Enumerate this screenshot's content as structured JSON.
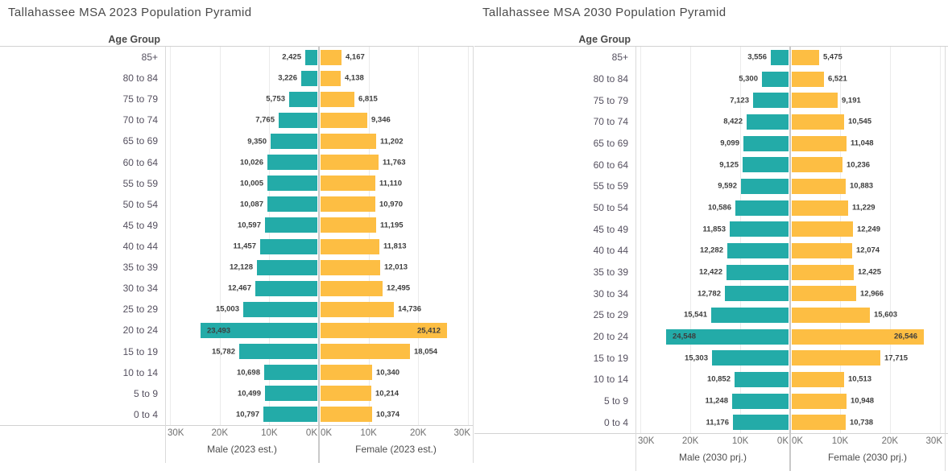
{
  "page": {
    "background": "#ffffff"
  },
  "colors": {
    "male_bar": "#23aba8",
    "female_bar": "#fdbe43",
    "title_text": "#4a4a4a",
    "age_label_text": "#55505f",
    "value_label_text": "#3d3d3d",
    "tick_text": "#6f6f6f",
    "axis_title_text": "#4e4e4e",
    "gridline": "#ebebeb",
    "center_axis_line": "#c9c9c9"
  },
  "chart_data": [
    {
      "type": "bar",
      "subtype": "population_pyramid",
      "title": "Tallahassee MSA 2023 Population Pyramid",
      "ylabel": "Age Group",
      "categories": [
        "85+",
        "80 to 84",
        "75 to 79",
        "70 to 74",
        "65 to 69",
        "60 to 64",
        "55 to 59",
        "50 to 54",
        "45 to 49",
        "40 to 44",
        "35 to 39",
        "30 to 34",
        "25 to 29",
        "20 to 24",
        "15 to 19",
        "10 to 14",
        "5 to 9",
        "0 to 4"
      ],
      "series": [
        {
          "name": "Male (2023 est.)",
          "side": "left",
          "color": "#23aba8",
          "values": [
            2425,
            3226,
            5753,
            7765,
            9350,
            10026,
            10005,
            10087,
            10597,
            11457,
            12128,
            12467,
            15003,
            23493,
            15782,
            10698,
            10499,
            10797
          ]
        },
        {
          "name": "Female (2023 est.)",
          "side": "right",
          "color": "#fdbe43",
          "values": [
            4167,
            4138,
            6815,
            9346,
            11202,
            11763,
            11110,
            10970,
            11195,
            11813,
            12013,
            12495,
            14736,
            25412,
            18054,
            10340,
            10214,
            10374
          ]
        }
      ],
      "xlim": [
        0,
        31000
      ],
      "tick_values": [
        30000,
        20000,
        10000,
        0
      ],
      "tick_labels": [
        "30K",
        "20K",
        "10K",
        "0K"
      ],
      "grid": true,
      "legend": "none"
    },
    {
      "type": "bar",
      "subtype": "population_pyramid",
      "title": "Tallahassee MSA 2030 Population Pyramid",
      "ylabel": "Age Group",
      "categories": [
        "85+",
        "80 to 84",
        "75 to 79",
        "70 to 74",
        "65 to 69",
        "60 to 64",
        "55 to 59",
        "50 to 54",
        "45 to 49",
        "40 to 44",
        "35 to 39",
        "30 to 34",
        "25 to 29",
        "20 to 24",
        "15 to 19",
        "10 to 14",
        "5 to 9",
        "0 to 4"
      ],
      "series": [
        {
          "name": "Male (2030 prj.)",
          "side": "left",
          "color": "#23aba8",
          "values": [
            3556,
            5300,
            7123,
            8422,
            9099,
            9125,
            9592,
            10586,
            11853,
            12282,
            12422,
            12782,
            15541,
            24548,
            15303,
            10852,
            11248,
            11176
          ]
        },
        {
          "name": "Female (2030 prj.)",
          "side": "right",
          "color": "#fdbe43",
          "values": [
            5475,
            6521,
            9191,
            10545,
            11048,
            10236,
            10883,
            11229,
            12249,
            12074,
            12425,
            12966,
            15603,
            26546,
            17715,
            10513,
            10948,
            10738
          ]
        }
      ],
      "xlim": [
        0,
        31000
      ],
      "tick_values": [
        30000,
        20000,
        10000,
        0
      ],
      "tick_labels": [
        "30K",
        "20K",
        "10K",
        "0K"
      ],
      "grid": true,
      "legend": "none"
    }
  ]
}
